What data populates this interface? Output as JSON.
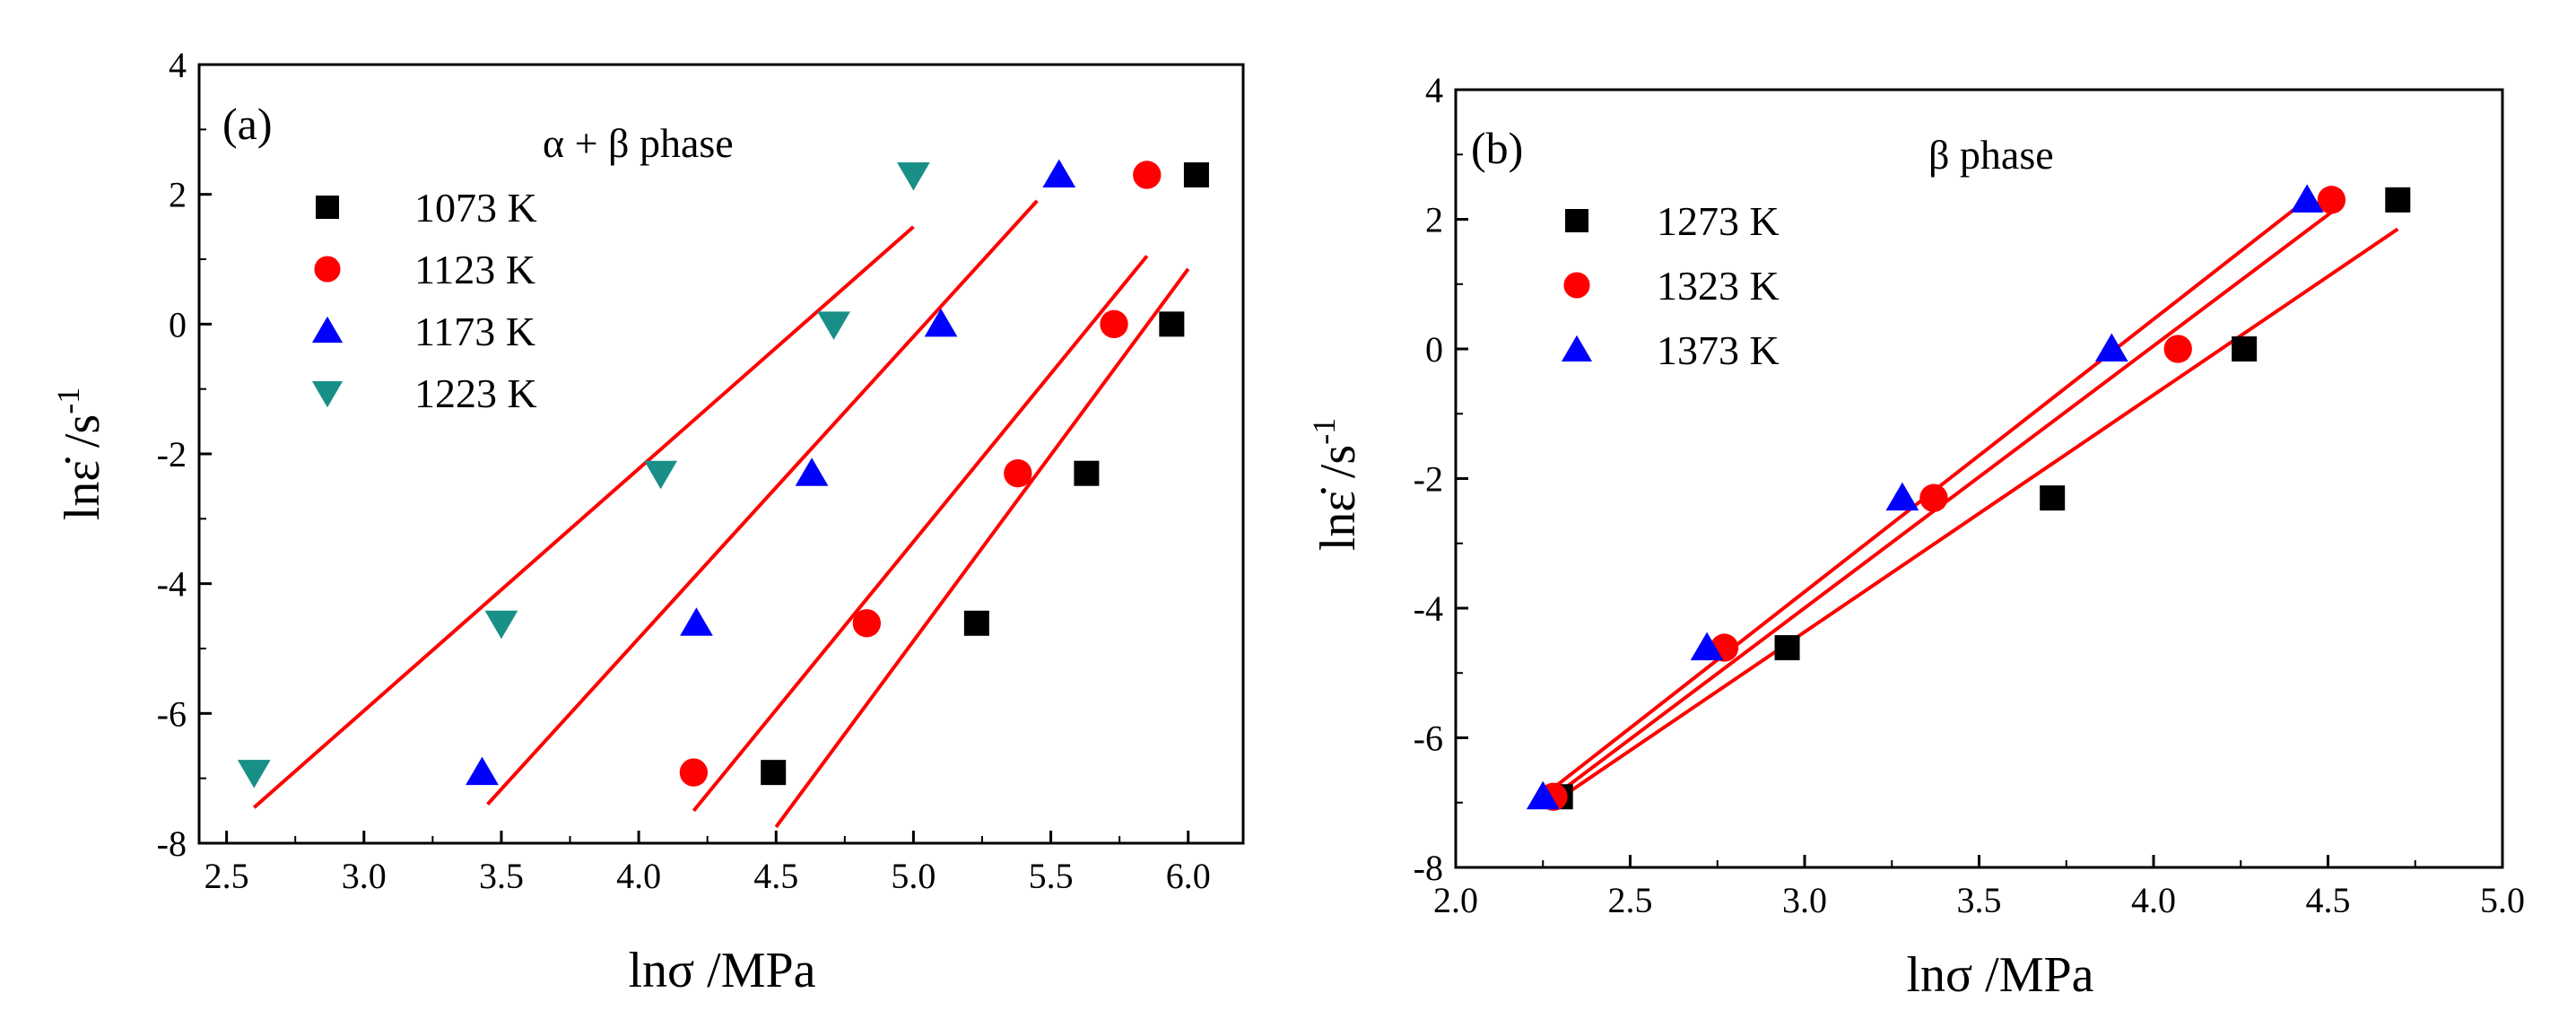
{
  "chart_data": [
    {
      "type": "scatter",
      "panel_label": "(a)",
      "phase_label": "α + β phase",
      "xlabel": "lnσ /MPa",
      "ylabel_main": "lnε̇ /s",
      "ylabel_sup": "-1",
      "xlim": [
        2.4,
        6.2
      ],
      "ylim": [
        -8,
        4
      ],
      "x_ticks": [
        2.5,
        3.0,
        3.5,
        4.0,
        4.5,
        5.0,
        5.5,
        6.0
      ],
      "x_tick_labels": [
        "2.5",
        "3.0",
        "3.5",
        "4.0",
        "4.5",
        "5.0",
        "5.5",
        "6.0"
      ],
      "y_ticks": [
        -8,
        -6,
        -4,
        -2,
        0,
        2,
        4
      ],
      "y_tick_labels": [
        "-8",
        "-6",
        "-4",
        "-2",
        "0",
        "2",
        "4"
      ],
      "legend_position": "upper-left",
      "series": [
        {
          "name": "1073 K",
          "marker": "square",
          "color": "#000000",
          "x": [
            4.49,
            5.23,
            5.63,
            5.94,
            6.03
          ],
          "y": [
            -6.91,
            -4.61,
            -2.3,
            0.0,
            2.3
          ],
          "fit": {
            "color": "#ff0000",
            "x": [
              4.5,
              6.0
            ],
            "y": [
              -7.75,
              0.85
            ]
          }
        },
        {
          "name": "1123 K",
          "marker": "circle",
          "color": "#ff0000",
          "x": [
            4.2,
            4.83,
            5.38,
            5.73,
            5.85
          ],
          "y": [
            -6.91,
            -4.61,
            -2.3,
            0.0,
            2.3
          ],
          "fit": {
            "color": "#ff0000",
            "x": [
              4.2,
              5.85
            ],
            "y": [
              -7.5,
              1.05
            ]
          }
        },
        {
          "name": "1173 K",
          "marker": "triangle-up",
          "color": "#0000ff",
          "x": [
            3.43,
            4.21,
            4.63,
            5.1,
            5.53
          ],
          "y": [
            -6.91,
            -4.61,
            -2.3,
            0.0,
            2.3
          ],
          "fit": {
            "color": "#ff0000",
            "x": [
              3.45,
              5.45
            ],
            "y": [
              -7.4,
              1.9
            ]
          }
        },
        {
          "name": "1223 K",
          "marker": "triangle-down",
          "color": "#188f87",
          "x": [
            2.6,
            3.5,
            4.08,
            4.71,
            5.0
          ],
          "y": [
            -6.91,
            -4.61,
            -2.3,
            0.0,
            2.3
          ],
          "fit": {
            "color": "#ff0000",
            "x": [
              2.6,
              5.0
            ],
            "y": [
              -7.45,
              1.5
            ]
          }
        }
      ]
    },
    {
      "type": "scatter",
      "panel_label": "(b)",
      "phase_label": "β phase",
      "xlabel": "lnσ /MPa",
      "ylabel_main": "lnε̇ /s",
      "ylabel_sup": "-1",
      "xlim": [
        2.0,
        5.0
      ],
      "ylim": [
        -8,
        4
      ],
      "x_ticks": [
        2.0,
        2.5,
        3.0,
        3.5,
        4.0,
        4.5,
        5.0
      ],
      "x_tick_labels": [
        "2.0",
        "2.5",
        "3.0",
        "3.5",
        "4.0",
        "4.5",
        "5.0"
      ],
      "y_ticks": [
        -8,
        -6,
        -4,
        -2,
        0,
        2,
        4
      ],
      "y_tick_labels": [
        "-8",
        "-6",
        "-4",
        "-2",
        "0",
        "2",
        "4"
      ],
      "legend_position": "upper-left",
      "series": [
        {
          "name": "1273 K",
          "marker": "square",
          "color": "#000000",
          "x": [
            2.3,
            2.95,
            3.71,
            4.26,
            4.7
          ],
          "y": [
            -6.91,
            -4.61,
            -2.3,
            0.0,
            2.3
          ],
          "fit": {
            "color": "#ff0000",
            "x": [
              2.28,
              4.7
            ],
            "y": [
              -7.0,
              1.85
            ]
          }
        },
        {
          "name": "1323 K",
          "marker": "circle",
          "color": "#ff0000",
          "x": [
            2.28,
            2.77,
            3.37,
            4.07,
            4.51
          ],
          "y": [
            -6.91,
            -4.61,
            -2.3,
            0.0,
            2.3
          ],
          "fit": {
            "color": "#ff0000",
            "x": [
              2.27,
              4.52
            ],
            "y": [
              -6.95,
              2.15
            ]
          }
        },
        {
          "name": "1373 K",
          "marker": "triangle-up",
          "color": "#0000ff",
          "x": [
            2.25,
            2.72,
            3.28,
            3.88,
            4.44
          ],
          "y": [
            -6.91,
            -4.61,
            -2.3,
            0.0,
            2.3
          ],
          "fit": {
            "color": "#ff0000",
            "x": [
              2.25,
              4.45
            ],
            "y": [
              -6.9,
              2.35
            ]
          }
        }
      ]
    }
  ]
}
